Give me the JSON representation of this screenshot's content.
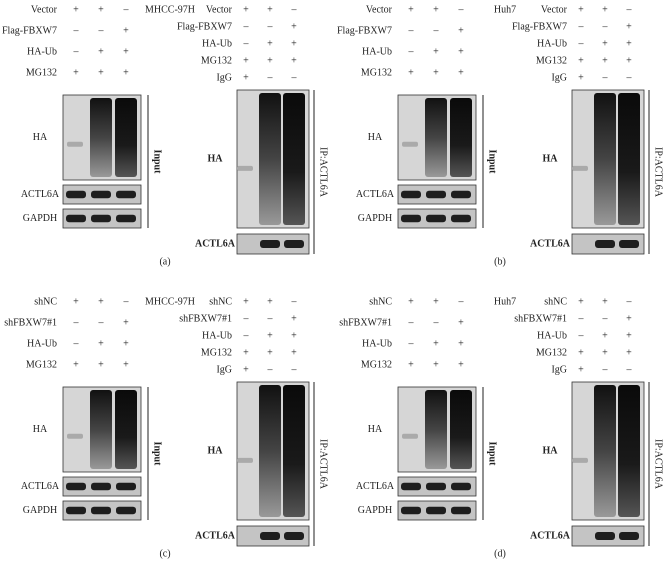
{
  "panels": [
    {
      "title": "MHCC-97H",
      "label": "(a)",
      "input": {
        "rows": [
          {
            "name": "Vector",
            "signs": [
              "+",
              "+",
              "–"
            ]
          },
          {
            "name": "Flag-FBXW7",
            "signs": [
              "–",
              "–",
              "+"
            ]
          },
          {
            "name": "HA-Ub",
            "signs": [
              "–",
              "+",
              "+"
            ]
          },
          {
            "name": "MG132",
            "signs": [
              "+",
              "+",
              "+"
            ]
          }
        ],
        "bands": [
          "HA",
          "ACTL6A",
          "GAPDH"
        ],
        "side": "Input"
      },
      "ip": {
        "rows": [
          {
            "name": "Vector",
            "signs": [
              "+",
              "+",
              "–"
            ]
          },
          {
            "name": "Flag-FBXW7",
            "signs": [
              "–",
              "–",
              "+"
            ]
          },
          {
            "name": "HA-Ub",
            "signs": [
              "–",
              "+",
              "+"
            ]
          },
          {
            "name": "MG132",
            "signs": [
              "+",
              "+",
              "+"
            ]
          },
          {
            "name": "IgG",
            "signs": [
              "+",
              "–",
              "–"
            ]
          }
        ],
        "bands": [
          "HA",
          "ACTL6A"
        ],
        "side": "IP:ACTL6A"
      }
    },
    {
      "title": "Huh7",
      "label": "(b)",
      "input": {
        "rows": [
          {
            "name": "Vector",
            "signs": [
              "+",
              "+",
              "–"
            ]
          },
          {
            "name": "Flag-FBXW7",
            "signs": [
              "–",
              "–",
              "+"
            ]
          },
          {
            "name": "HA-Ub",
            "signs": [
              "–",
              "+",
              "+"
            ]
          },
          {
            "name": "MG132",
            "signs": [
              "+",
              "+",
              "+"
            ]
          }
        ],
        "bands": [
          "HA",
          "ACTL6A",
          "GAPDH"
        ],
        "side": "Input"
      },
      "ip": {
        "rows": [
          {
            "name": "Vector",
            "signs": [
              "+",
              "+",
              "–"
            ]
          },
          {
            "name": "Flag-FBXW7",
            "signs": [
              "–",
              "–",
              "+"
            ]
          },
          {
            "name": "HA-Ub",
            "signs": [
              "–",
              "+",
              "+"
            ]
          },
          {
            "name": "MG132",
            "signs": [
              "+",
              "+",
              "+"
            ]
          },
          {
            "name": "IgG",
            "signs": [
              "+",
              "–",
              "–"
            ]
          }
        ],
        "bands": [
          "HA",
          "ACTL6A"
        ],
        "side": "IP:ACTL6A"
      }
    },
    {
      "title": "MHCC-97H",
      "label": "(c)",
      "input": {
        "rows": [
          {
            "name": "shNC",
            "signs": [
              "+",
              "+",
              "–"
            ]
          },
          {
            "name": "shFBXW7#1",
            "signs": [
              "–",
              "–",
              "+"
            ]
          },
          {
            "name": "HA-Ub",
            "signs": [
              "–",
              "+",
              "+"
            ]
          },
          {
            "name": "MG132",
            "signs": [
              "+",
              "+",
              "+"
            ]
          }
        ],
        "bands": [
          "HA",
          "ACTL6A",
          "GAPDH"
        ],
        "side": "Input"
      },
      "ip": {
        "rows": [
          {
            "name": "shNC",
            "signs": [
              "+",
              "+",
              "–"
            ]
          },
          {
            "name": "shFBXW7#1",
            "signs": [
              "–",
              "–",
              "+"
            ]
          },
          {
            "name": "HA-Ub",
            "signs": [
              "–",
              "+",
              "+"
            ]
          },
          {
            "name": "MG132",
            "signs": [
              "+",
              "+",
              "+"
            ]
          },
          {
            "name": "IgG",
            "signs": [
              "+",
              "–",
              "–"
            ]
          }
        ],
        "bands": [
          "HA",
          "ACTL6A"
        ],
        "side": "IP:ACTL6A"
      }
    },
    {
      "title": "Huh7",
      "label": "(d)",
      "input": {
        "rows": [
          {
            "name": "shNC",
            "signs": [
              "+",
              "+",
              "–"
            ]
          },
          {
            "name": "shFBXW7#1",
            "signs": [
              "–",
              "–",
              "+"
            ]
          },
          {
            "name": "HA-Ub",
            "signs": [
              "–",
              "+",
              "+"
            ]
          },
          {
            "name": "MG132",
            "signs": [
              "+",
              "+",
              "+"
            ]
          }
        ],
        "bands": [
          "HA",
          "ACTL6A",
          "GAPDH"
        ],
        "side": "Input"
      },
      "ip": {
        "rows": [
          {
            "name": "shNC",
            "signs": [
              "+",
              "+",
              "–"
            ]
          },
          {
            "name": "shFBXW7#1",
            "signs": [
              "–",
              "–",
              "+"
            ]
          },
          {
            "name": "HA-Ub",
            "signs": [
              "–",
              "+",
              "+"
            ]
          },
          {
            "name": "MG132",
            "signs": [
              "+",
              "+",
              "+"
            ]
          },
          {
            "name": "IgG",
            "signs": [
              "+",
              "–",
              "–"
            ]
          }
        ],
        "bands": [
          "HA",
          "ACTL6A"
        ],
        "side": "IP:ACTL6A"
      }
    }
  ]
}
